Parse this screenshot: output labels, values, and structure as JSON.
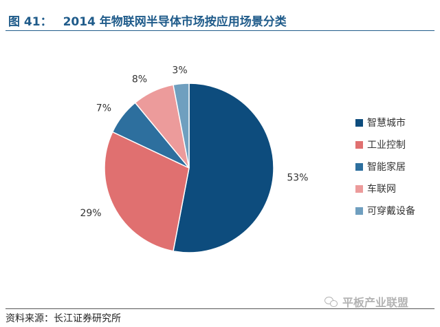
{
  "header": {
    "figure_label": "图 41：",
    "title": "2014 年物联网半导体市场按应用场景分类"
  },
  "chart_data": {
    "type": "pie",
    "categories": [
      "智慧城市",
      "工业控制",
      "智能家居",
      "车联网",
      "可穿戴设备"
    ],
    "values": [
      53,
      29,
      7,
      8,
      3
    ],
    "labels": [
      "53%",
      "29%",
      "7%",
      "8%",
      "3%"
    ],
    "colors": [
      "#0d4c7d",
      "#e07070",
      "#2d6f9e",
      "#ec9b9b",
      "#6f9fbf"
    ],
    "legend": "right",
    "start": "top, clockwise"
  },
  "footer": {
    "source": "资料来源：长江证券研究所"
  },
  "watermark": {
    "text": "平板产业联盟",
    "icon": "wechat-icon"
  }
}
